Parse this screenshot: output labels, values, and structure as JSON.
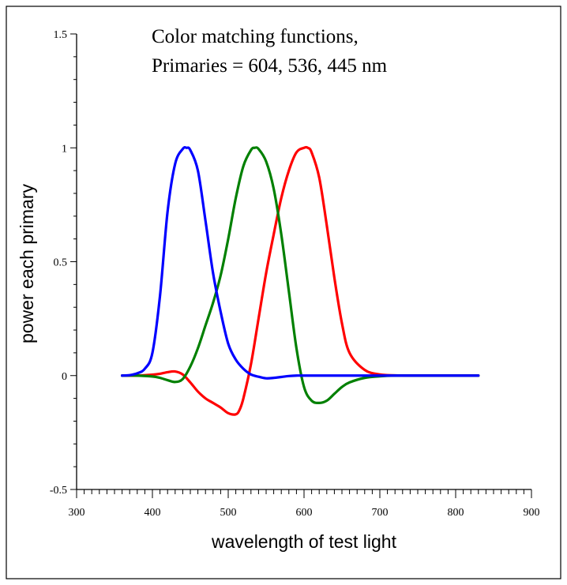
{
  "chart_data": {
    "type": "line",
    "title_lines": [
      "Color matching functions,",
      "Primaries = 604, 536, 445 nm"
    ],
    "xlabel": "wavelength of test light",
    "ylabel": "power each primary",
    "xlim": [
      300,
      900
    ],
    "ylim": [
      -0.5,
      1.5
    ],
    "x_ticks": [
      300,
      400,
      500,
      600,
      700,
      800,
      900
    ],
    "x_tick_labels": [
      "300",
      "400",
      "500",
      "600",
      "700",
      "800",
      "900"
    ],
    "x_minor_step": 10,
    "y_ticks": [
      -0.5,
      0,
      0.5,
      1,
      1.5
    ],
    "y_tick_labels": [
      "-0.5",
      "0",
      "0.5",
      "1",
      "1.5"
    ],
    "y_minor_step": 0.1,
    "grid": false,
    "series": [
      {
        "color": "#ff0000",
        "x": [
          360,
          380,
          400,
          410,
          420,
          430,
          440,
          450,
          460,
          470,
          480,
          490,
          500,
          510,
          515,
          520,
          530,
          540,
          550,
          560,
          570,
          580,
          590,
          600,
          605,
          610,
          620,
          630,
          640,
          650,
          660,
          680,
          700,
          720,
          750,
          800,
          830
        ],
        "y": [
          0,
          0,
          0.004,
          0.008,
          0.015,
          0.018,
          0.005,
          -0.03,
          -0.07,
          -0.1,
          -0.12,
          -0.14,
          -0.165,
          -0.17,
          -0.15,
          -0.1,
          0.05,
          0.25,
          0.45,
          0.62,
          0.78,
          0.9,
          0.98,
          1.0,
          1.0,
          0.98,
          0.87,
          0.66,
          0.43,
          0.23,
          0.1,
          0.025,
          0.005,
          0.001,
          0,
          0,
          0
        ]
      },
      {
        "color": "#008000",
        "x": [
          360,
          380,
          400,
          410,
          420,
          430,
          440,
          450,
          460,
          470,
          480,
          490,
          500,
          510,
          520,
          530,
          535,
          540,
          550,
          560,
          570,
          580,
          590,
          600,
          610,
          620,
          630,
          640,
          650,
          660,
          680,
          700,
          720,
          750,
          800,
          830
        ],
        "y": [
          0,
          0,
          -0.004,
          -0.01,
          -0.02,
          -0.028,
          -0.015,
          0.04,
          0.12,
          0.22,
          0.32,
          0.44,
          0.6,
          0.78,
          0.92,
          0.99,
          1.0,
          0.995,
          0.94,
          0.82,
          0.62,
          0.37,
          0.12,
          -0.05,
          -0.11,
          -0.12,
          -0.11,
          -0.08,
          -0.05,
          -0.03,
          -0.01,
          -0.003,
          0,
          0,
          0,
          0
        ]
      },
      {
        "color": "#0000ff",
        "x": [
          360,
          370,
          380,
          390,
          400,
          410,
          420,
          430,
          440,
          445,
          450,
          460,
          470,
          480,
          490,
          500,
          510,
          520,
          530,
          540,
          550,
          560,
          570,
          580,
          590,
          600,
          650,
          700,
          750,
          800,
          830
        ],
        "y": [
          0,
          0.002,
          0.01,
          0.03,
          0.1,
          0.35,
          0.72,
          0.93,
          0.995,
          1.0,
          0.99,
          0.9,
          0.68,
          0.45,
          0.28,
          0.14,
          0.07,
          0.03,
          0.005,
          -0.005,
          -0.012,
          -0.01,
          -0.006,
          -0.002,
          0,
          0,
          0,
          0,
          0,
          0,
          0
        ]
      }
    ]
  }
}
